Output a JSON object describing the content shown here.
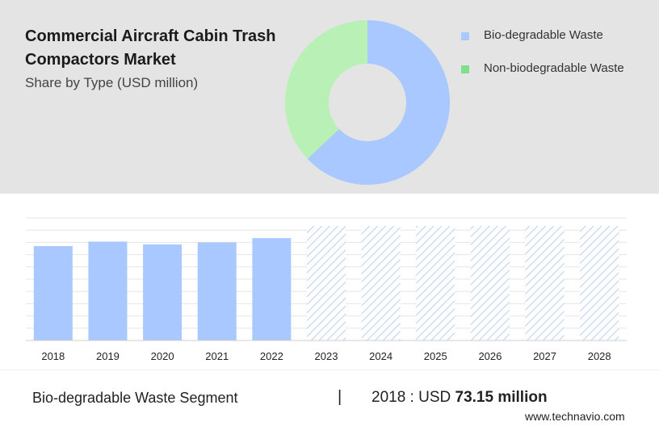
{
  "header": {
    "title": "Commercial Aircraft Cabin Trash Compactors Market",
    "subtitle": "Share by Type (USD million)"
  },
  "legend": [
    {
      "label": "Bio-degradable Waste",
      "color": "#a8c8ff"
    },
    {
      "label": "Non-biodegradable Waste",
      "color": "#7ee08a"
    }
  ],
  "chart_data": [
    {
      "type": "pie",
      "series": [
        {
          "name": "Bio-degradable Waste",
          "value": 63,
          "color": "#a8c8ff"
        },
        {
          "name": "Non-biodegradable Waste",
          "value": 37,
          "color": "#b9f0b6"
        }
      ]
    },
    {
      "type": "bar",
      "categories": [
        "2018",
        "2019",
        "2020",
        "2021",
        "2022",
        "2023",
        "2024",
        "2025",
        "2026",
        "2027",
        "2028"
      ],
      "values": [
        73.15,
        76.6,
        74.4,
        76.0,
        79.3,
        null,
        null,
        null,
        null,
        null,
        null
      ],
      "forecast": [
        "2023",
        "2024",
        "2025",
        "2026",
        "2027",
        "2028"
      ],
      "ylim": [
        0,
        95
      ],
      "grid": true,
      "bar_color": "#a8c8ff"
    }
  ],
  "footer": {
    "segment_label": "Bio-degradable Waste Segment",
    "separator": "|",
    "year_prefix": "2018 : USD",
    "highlight_value": "73.15 million"
  },
  "brand": "www.technavio.com"
}
